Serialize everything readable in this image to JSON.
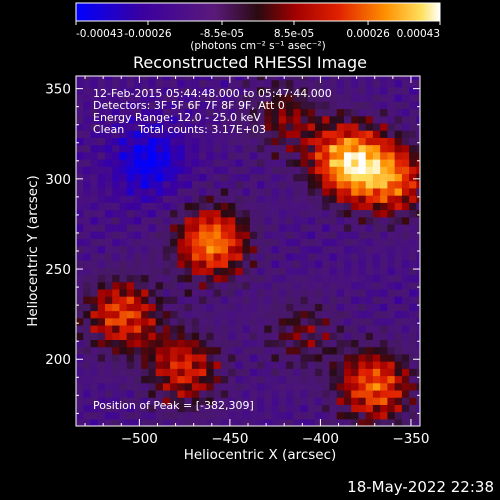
{
  "chart_data": {
    "type": "heatmap",
    "title": "Reconstructed RHESSI Image",
    "xlabel": "Heliocentric X (arcsec)",
    "ylabel": "Heliocentric Y (arcsec)",
    "xlim": [
      -535,
      -345
    ],
    "ylim": [
      163,
      357
    ],
    "xticks": [
      -500,
      -450,
      -400,
      -350
    ],
    "yticks": [
      200,
      250,
      300,
      350
    ],
    "colorbar": {
      "ticks": [
        -0.00043,
        -0.00026,
        -8.5e-05,
        8.5e-05,
        0.00026,
        0.00043
      ],
      "tick_labels": [
        "-0.00043",
        "-0.00026",
        "-8.5e-05",
        "8.5e-05",
        "0.00026",
        "0.00043"
      ],
      "range": [
        -0.00043,
        0.00043
      ],
      "unit_label": "(photons cm⁻² s⁻¹ asec⁻²)",
      "colors": [
        "#0000ff",
        "#3b0a6e",
        "#5a1a8c",
        "#8b0000",
        "#e03000",
        "#ff8000",
        "#ffd000",
        "#ffffff"
      ]
    },
    "sources": [
      {
        "x": -385,
        "y": 310,
        "value": 0.00043
      },
      {
        "x": -360,
        "y": 300,
        "value": 0.0003
      },
      {
        "x": -460,
        "y": 265,
        "value": 0.00038
      },
      {
        "x": -510,
        "y": 225,
        "value": 0.0003
      },
      {
        "x": -475,
        "y": 195,
        "value": 0.00026
      },
      {
        "x": -370,
        "y": 185,
        "value": 0.00034
      },
      {
        "x": -410,
        "y": 215,
        "value": 0.00012
      },
      {
        "x": -420,
        "y": 335,
        "value": 0.00015
      },
      {
        "x": -495,
        "y": 310,
        "value": -0.00032
      }
    ],
    "annotations": [
      "12-Feb-2015 05:44:48.000 to 05:47:44.000",
      "Detectors: 3F 5F 6F 7F 8F 9F, Att 0",
      "Energy Range: 12.0 - 25.0 keV",
      "Clean    Total counts: 3.17E+03",
      "Position of Peak = [-382,309]"
    ],
    "peak": [
      -382,
      309
    ],
    "grid": false
  },
  "footer": {
    "timestamp": "18-May-2022 22:38"
  }
}
